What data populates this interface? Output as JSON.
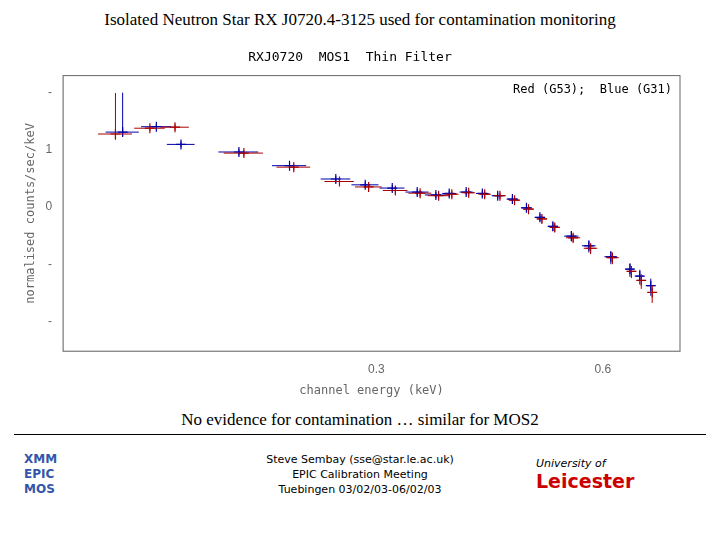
{
  "chart_data": {
    "type": "scatter",
    "title": "Isolated Neutron Star RX J0720.4-3125 used for contamination monitoring",
    "plot_title": "RXJ0720  MOS1  Thin Filter",
    "subtitle": "No evidence for contamination … similar for MOS2",
    "annotation": "Red (G53);  Blue (G31)",
    "xlabel": "channel energy (keV)",
    "ylabel": "normalised counts/sec/keV",
    "log": true,
    "grid": false,
    "xlim": [
      0.115,
      0.76
    ],
    "xticks": [
      0.3,
      0.6
    ],
    "ylim": [
      0.0003,
      20
    ],
    "yticks": [
      {
        "value": 0.001,
        "label": "-"
      },
      {
        "value": 0.01,
        "label": "-"
      },
      {
        "value": 0.1,
        "label": "0"
      },
      {
        "value": 1,
        "label": "1"
      },
      {
        "value": 10,
        "label": "-"
      }
    ],
    "marker": "plus",
    "series": [
      {
        "color": "#0000aa",
        "x": [
          0.138,
          0.153,
          0.165,
          0.197,
          0.23,
          0.265,
          0.29,
          0.315,
          0.34,
          0.36,
          0.375,
          0.395,
          0.415,
          0.435,
          0.455,
          0.475,
          0.495,
          0.515,
          0.545,
          0.575,
          0.615,
          0.652,
          0.672,
          0.695
        ],
        "values": [
          2.05,
          2.55,
          1.25,
          0.92,
          0.53,
          0.31,
          0.245,
          0.215,
          0.183,
          0.163,
          0.173,
          0.183,
          0.173,
          0.158,
          0.138,
          0.097,
          0.066,
          0.046,
          0.031,
          0.021,
          0.0135,
          0.0082,
          0.0062,
          0.0042
        ],
        "yerr": [
          0.28,
          0.28,
          0.15,
          0.11,
          0.065,
          0.038,
          0.03,
          0.027,
          0.023,
          0.021,
          0.022,
          0.023,
          0.022,
          0.02,
          0.018,
          0.013,
          0.01,
          0.008,
          0.006,
          0.005,
          0.0035,
          0.0022,
          0.0018,
          0.0014
        ],
        "xerr": [
          0.007,
          0.007,
          0.007,
          0.012,
          0.012,
          0.012,
          0.012,
          0.012,
          0.012,
          0.012,
          0.008,
          0.008,
          0.008,
          0.008,
          0.008,
          0.008,
          0.008,
          0.008,
          0.012,
          0.012,
          0.012,
          0.008,
          0.008,
          0.008
        ],
        "extra_yerr": {
          "x": 0.138,
          "y": 2.05,
          "minus": 0.0,
          "plus": 8.0
        }
      },
      {
        "color": "#aa0000",
        "x": [
          0.135,
          0.15,
          0.162,
          0.2,
          0.233,
          0.268,
          0.293,
          0.318,
          0.343,
          0.363,
          0.378,
          0.398,
          0.418,
          0.438,
          0.458,
          0.478,
          0.498,
          0.518,
          0.548,
          0.578,
          0.618,
          0.655,
          0.675,
          0.698
        ],
        "values": [
          1.9,
          2.4,
          2.5,
          0.88,
          0.5,
          0.28,
          0.225,
          0.195,
          0.175,
          0.158,
          0.168,
          0.178,
          0.168,
          0.158,
          0.132,
          0.092,
          0.062,
          0.044,
          0.029,
          0.019,
          0.013,
          0.0075,
          0.0052,
          0.0032
        ],
        "yerr": [
          0.25,
          0.25,
          0.3,
          0.1,
          0.06,
          0.035,
          0.028,
          0.024,
          0.022,
          0.02,
          0.021,
          0.022,
          0.021,
          0.02,
          0.017,
          0.012,
          0.009,
          0.007,
          0.005,
          0.004,
          0.003,
          0.0018,
          0.0015,
          0.0011
        ],
        "xerr": [
          0.007,
          0.007,
          0.007,
          0.012,
          0.012,
          0.012,
          0.012,
          0.012,
          0.012,
          0.012,
          0.008,
          0.008,
          0.008,
          0.008,
          0.008,
          0.008,
          0.008,
          0.008,
          0.012,
          0.012,
          0.012,
          0.008,
          0.008,
          0.008
        ],
        "extra_yerr": {
          "x": 0.135,
          "y": 1.9,
          "minus": 0.4,
          "plus": 8.0
        }
      }
    ],
    "footer": {
      "left": [
        "XMM",
        "EPIC",
        "MOS"
      ],
      "left_color": "#3355aa",
      "center": [
        "Steve Sembay (sse@star.le.ac.uk)",
        "EPIC Calibration Meeting",
        "Tuebingen 03/02/03-06/02/03"
      ],
      "right": [
        "University of",
        "Leicester"
      ],
      "right_color": "#cc0000"
    }
  }
}
